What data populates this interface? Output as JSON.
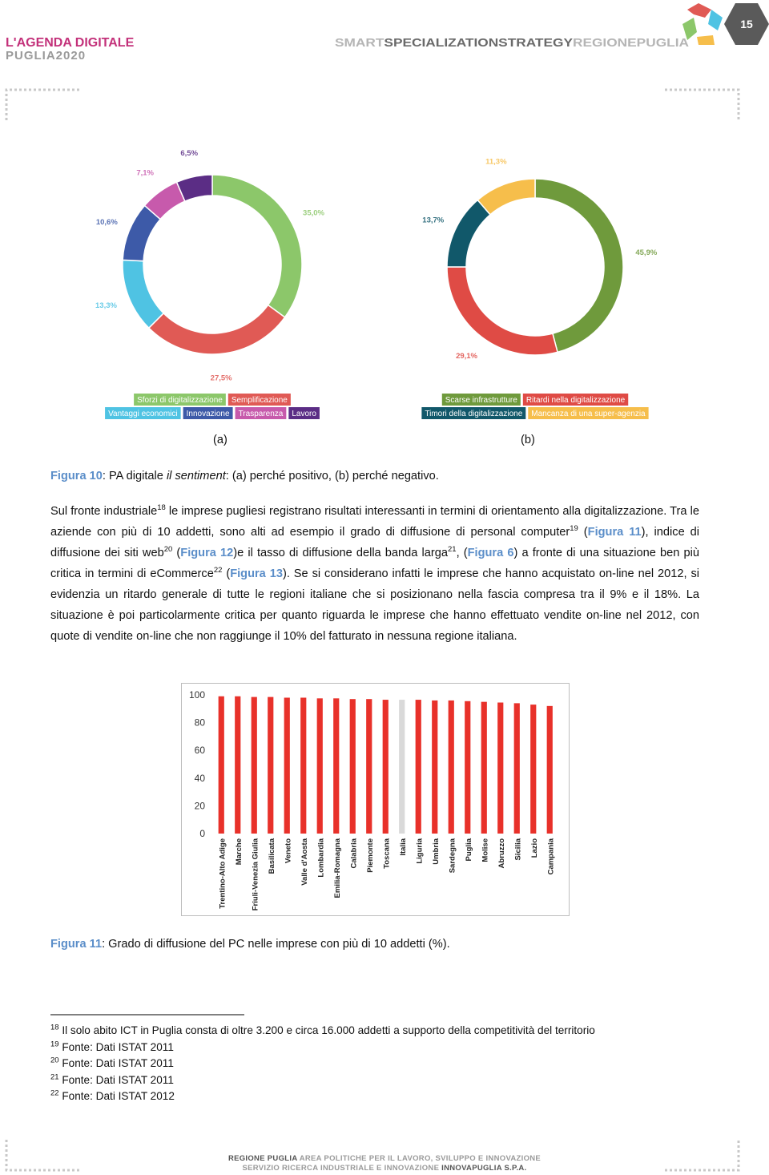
{
  "header": {
    "logo": [
      "L'AGENDA DIGITALE",
      "PUGLIA2020"
    ],
    "strategy": [
      "SMART",
      "SPECIALIZATIONSTRATEGY",
      "REGIONEPUGLIA"
    ],
    "page_number": "15"
  },
  "chart_data": [
    {
      "type": "donut",
      "categories": [
        "Sforzi di digitalizzazione",
        "Semplificazione",
        "Vantaggi economici",
        "Innovazione",
        "Trasparenza",
        "Lavoro"
      ],
      "values": [
        35.0,
        27.5,
        13.3,
        10.6,
        7.1,
        6.5
      ],
      "value_labels": [
        "35,0%",
        "27,5%",
        "13,3%",
        "10,6%",
        "7,1%",
        "6,5%"
      ],
      "colors": [
        "#8cc76a",
        "#e05a55",
        "#4fc3e3",
        "#3d5aa8",
        "#c75aac",
        "#5b2d85"
      ]
    },
    {
      "type": "donut",
      "categories": [
        "Scarse infrastrutture",
        "Ritardi nella digitalizzazione",
        "Timori della digitalizzazione",
        "Mancanza di una super-agenzia"
      ],
      "values": [
        45.9,
        29.1,
        13.7,
        11.3
      ],
      "value_labels": [
        "45,9%",
        "29,1%",
        "13,7%",
        "11,3%"
      ],
      "colors": [
        "#6f9a3c",
        "#df4b45",
        "#11586a",
        "#f6be4b"
      ]
    },
    {
      "type": "bar",
      "categories": [
        "Trentino-Alto Adige",
        "Marche",
        "Friuli-Venezia Giulia",
        "Basilicata",
        "Veneto",
        "Valle d'Aosta",
        "Lombardia",
        "Emilia-Romagna",
        "Calabria",
        "Piemonte",
        "Toscana",
        "Italia",
        "Liguria",
        "Umbria",
        "Sardegna",
        "Puglia",
        "Molise",
        "Abruzzo",
        "Sicilia",
        "Lazio",
        "Campania"
      ],
      "values": [
        99,
        99,
        98.5,
        98.5,
        98,
        98,
        97.5,
        97.5,
        97,
        97,
        96.5,
        96.5,
        96.5,
        96,
        96,
        95.5,
        95,
        94.5,
        94,
        93,
        92
      ],
      "colors": [
        "#e8312a",
        "#e8312a",
        "#e8312a",
        "#e8312a",
        "#e8312a",
        "#e8312a",
        "#e8312a",
        "#e8312a",
        "#e8312a",
        "#e8312a",
        "#e8312a",
        "#d9d9d9",
        "#e8312a",
        "#e8312a",
        "#e8312a",
        "#e8312a",
        "#e8312a",
        "#e8312a",
        "#e8312a",
        "#e8312a",
        "#e8312a"
      ],
      "ylim": [
        0,
        100
      ],
      "yticks": [
        0,
        20,
        40,
        60,
        80,
        100
      ],
      "grid": false
    }
  ],
  "figure10": {
    "panels": [
      "(a)",
      "(b)"
    ],
    "caption": [
      "Figura 10",
      ": PA digitale ",
      "il sentiment",
      ": (a) perché positivo, (b) perché negativo."
    ]
  },
  "body": {
    "segments": [
      "Sul fronte industriale",
      "18",
      " le imprese pugliesi registrano risultati interessanti in termini di orientamento alla digitalizzazione. Tra le aziende con più di 10 addetti, sono alti ad esempio il grado di diffusione di personal computer",
      "19",
      " (",
      "Figura 11",
      "), indice di diffusione dei siti web",
      "20",
      " (",
      "Figura 12",
      ")e il tasso di diffusione della banda larga",
      "21",
      ", (",
      "Figura 6",
      ") a fronte di una situazione ben più critica in termini di eCommerce",
      "22",
      " (",
      "Figura 13",
      "). Se si considerano infatti le imprese che hanno acquistato on-line nel 2012, si evidenzia un ritardo generale di tutte le regioni italiane che si posizionano nella fascia compresa tra il 9% e il 18%. La situazione è poi particolarmente critica per quanto riguarda le imprese che hanno effettuato vendite on-line nel 2012, con quote di vendite on-line che non raggiunge il 10% del fatturato in nessuna regione italiana."
    ]
  },
  "figure11": {
    "caption": [
      "Figura 11",
      ": Grado di diffusione del PC nelle imprese con più di 10 addetti (%)."
    ]
  },
  "footnotes": [
    {
      "number": "18",
      "text": "Il solo abito ICT in Puglia consta di oltre 3.200 e circa 16.000 addetti a supporto della competitività del territorio"
    },
    {
      "number": "19",
      "text": "Fonte: Dati ISTAT 2011"
    },
    {
      "number": "20",
      "text": "Fonte: Dati ISTAT 2011"
    },
    {
      "number": "21",
      "text": "Fonte: Dati ISTAT 2011"
    },
    {
      "number": "22",
      "text": "Fonte: Dati ISTAT 2012"
    }
  ],
  "footer": {
    "line1": [
      "REGIONE PUGLIA",
      " AREA POLITICHE PER IL LAVORO, SVILUPPO E INNOVAZIONE"
    ],
    "line2": [
      "SERVIZIO RICERCA INDUSTRIALE E INNOVAZIONE ",
      "INNOVAPUGLIA S.P.A."
    ]
  }
}
